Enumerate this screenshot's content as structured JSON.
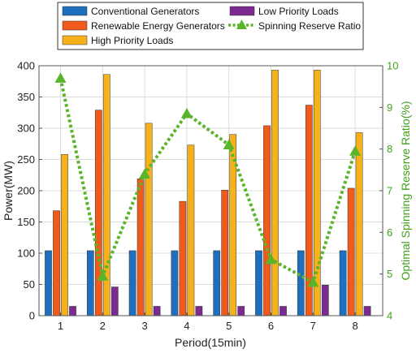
{
  "chart_data": {
    "type": "bar",
    "categories": [
      "1",
      "2",
      "3",
      "4",
      "5",
      "6",
      "7",
      "8"
    ],
    "xlabel": "Period(15min)",
    "ylabel": "Power(MW)",
    "ylim": [
      0,
      400
    ],
    "yticks": [
      0,
      50,
      100,
      150,
      200,
      250,
      300,
      350,
      400
    ],
    "y2label": "Optimal Spinning Reserve Ratio(%)",
    "y2lim": [
      4,
      10
    ],
    "y2ticks": [
      "4",
      "5",
      "6",
      "7",
      "8",
      "9",
      "10"
    ],
    "grid": true,
    "legend_position": "top",
    "series": [
      {
        "name": "Conventional Generators",
        "type": "bar",
        "axis": "left",
        "color": "#1f6fbf",
        "values": [
          104,
          104,
          104,
          104,
          104,
          104,
          104,
          104
        ]
      },
      {
        "name": "Renewable Energy Generators",
        "type": "bar",
        "axis": "left",
        "color": "#f05a1a",
        "values": [
          168,
          329,
          219,
          183,
          201,
          304,
          337,
          204
        ]
      },
      {
        "name": "High Priority Loads",
        "type": "bar",
        "axis": "left",
        "color": "#f7b21b",
        "values": [
          258,
          386,
          308,
          273,
          290,
          393,
          393,
          293
        ]
      },
      {
        "name": "Low Priority Loads",
        "type": "bar",
        "axis": "left",
        "color": "#7a2a91",
        "values": [
          15,
          46,
          15,
          15,
          15,
          15,
          49,
          15
        ]
      },
      {
        "name": "Spinning Reserve Ratio",
        "type": "line",
        "axis": "right",
        "color": "#5ab52a",
        "values": [
          9.7,
          4.95,
          7.4,
          8.85,
          8.1,
          5.35,
          4.8,
          7.95
        ]
      }
    ]
  }
}
